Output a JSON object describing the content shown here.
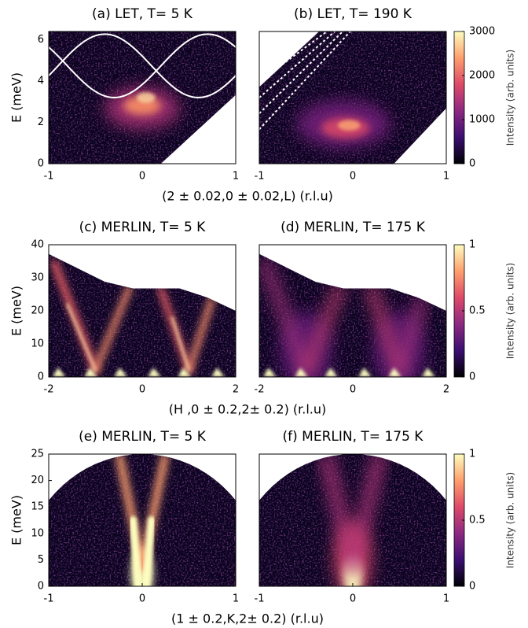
{
  "chart_data": [
    {
      "type": "heatmap",
      "title": "(a) LET, T= 5 K",
      "xlabel": "(2 ± 0.02,0 ± 0.02,L) (r.l.u)",
      "ylabel": "E (meV)",
      "xlim": [
        -1,
        1
      ],
      "xticks": [
        -1,
        0,
        1
      ],
      "ylim": [
        0,
        6.4
      ],
      "yticks": [
        0,
        2,
        4,
        6
      ]
    },
    {
      "type": "heatmap",
      "title": "(b) LET, T= 190 K",
      "xlim": [
        -1,
        1
      ],
      "xticks": [
        -1,
        0,
        1
      ],
      "ylim": [
        0,
        6.4
      ],
      "colorbar": {
        "label": "Intensity (arb. units)",
        "lim": [
          0,
          3000
        ],
        "ticks": [
          0,
          1000,
          2000,
          3000
        ]
      }
    },
    {
      "type": "heatmap",
      "title": "(c) MERLIN, T= 5 K",
      "xlabel": "(H ,0 ± 0.2,2± 0.2) (r.l.u)",
      "ylabel": "E (meV)",
      "xlim": [
        -2,
        2
      ],
      "xticks": [
        -2,
        0,
        2
      ],
      "ylim": [
        0,
        40
      ],
      "yticks": [
        0,
        10,
        20,
        30,
        40
      ]
    },
    {
      "type": "heatmap",
      "title": "(d) MERLIN, T= 175 K",
      "xlim": [
        -2,
        2
      ],
      "xticks": [
        -2,
        0,
        2
      ],
      "ylim": [
        0,
        40
      ],
      "colorbar": {
        "label": "Intensity (arb. units)",
        "lim": [
          0,
          1
        ],
        "ticks": [
          0,
          0.5,
          1
        ]
      }
    },
    {
      "type": "heatmap",
      "title": "(e) MERLIN, T= 5 K",
      "xlabel": "(1 ± 0.2,K,2± 0.2) (r.l.u)",
      "ylabel": "E (meV)",
      "xlim": [
        -1,
        1
      ],
      "xticks": [
        -1,
        0,
        1
      ],
      "ylim": [
        0,
        25
      ],
      "yticks": [
        0,
        5,
        10,
        15,
        20,
        25
      ]
    },
    {
      "type": "heatmap",
      "title": "(f) MERLIN, T= 175 K",
      "xlim": [
        -1,
        1
      ],
      "xticks": [
        -1,
        0,
        1
      ],
      "ylim": [
        0,
        25
      ],
      "colorbar": {
        "label": "Intensity (arb. units)",
        "lim": [
          0,
          1
        ],
        "ticks": [
          0,
          0.5,
          1
        ]
      }
    }
  ]
}
